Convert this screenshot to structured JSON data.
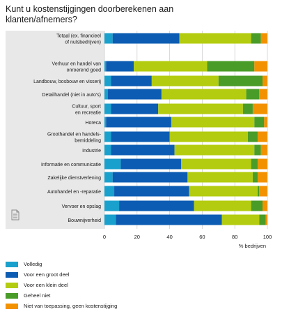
{
  "title": "Kunt u kostenstijgingen doorberekenen aan klanten/afnemers?",
  "colors": {
    "panel_bg": "#e8e8e8",
    "plot_bg": "#ffffff",
    "grid": "#d0d0d0"
  },
  "chart_data": {
    "type": "bar",
    "orientation": "horizontal",
    "stacked": true,
    "title": "Kunt u kostenstijgingen doorberekenen aan klanten/afnemers?",
    "xlabel": "% bedrijven",
    "xlim": [
      0,
      100
    ],
    "xticks": [
      0,
      20,
      40,
      60,
      80,
      100
    ],
    "grid": true,
    "legend_position": "bottom",
    "categories": [
      [
        "Totaal (ex. financieel",
        "of nutsbedrijven)"
      ],
      [
        "Verhuur en handel van",
        "onroerend goed"
      ],
      [
        "Landbouw, bosbouw en visserij"
      ],
      [
        "Detailhandel (niet in auto's)"
      ],
      [
        "Cultuur, sport",
        "en recreatie"
      ],
      [
        "Horeca"
      ],
      [
        "Groothandel en handels-",
        "bemiddeling"
      ],
      [
        "Industrie"
      ],
      [
        "Informatie en communicatie"
      ],
      [
        "Zakelijke dienstverlening"
      ],
      [
        "Autohandel en -reparatie"
      ],
      [
        "Vervoer en opslag"
      ],
      [
        "Bouwnijverheid"
      ]
    ],
    "series": [
      {
        "name": "Volledig",
        "color": "#1aa0cc",
        "values": [
          5,
          1,
          4,
          2,
          4,
          1,
          4,
          4,
          10,
          5,
          6,
          9,
          7
        ]
      },
      {
        "name": "Voor een groot deel",
        "color": "#0d5cb3",
        "values": [
          41,
          17,
          25,
          33,
          29,
          40,
          36,
          39,
          37,
          46,
          46,
          46,
          65
        ]
      },
      {
        "name": "Voor een klein deel",
        "color": "#b3cc0f",
        "values": [
          44,
          45,
          41,
          52,
          52,
          51,
          48,
          49,
          43,
          40,
          42,
          35,
          23
        ]
      },
      {
        "name": "Geheel niet",
        "color": "#4a9c28",
        "values": [
          6,
          29,
          27,
          8,
          6,
          6,
          6,
          4,
          4,
          3,
          1,
          7,
          4
        ]
      },
      {
        "name": "Niet van toepassing, geen kostenstijging",
        "color": "#f39200",
        "values": [
          4,
          8,
          3,
          5,
          9,
          2,
          6,
          4,
          6,
          6,
          5,
          3,
          1
        ]
      }
    ]
  }
}
